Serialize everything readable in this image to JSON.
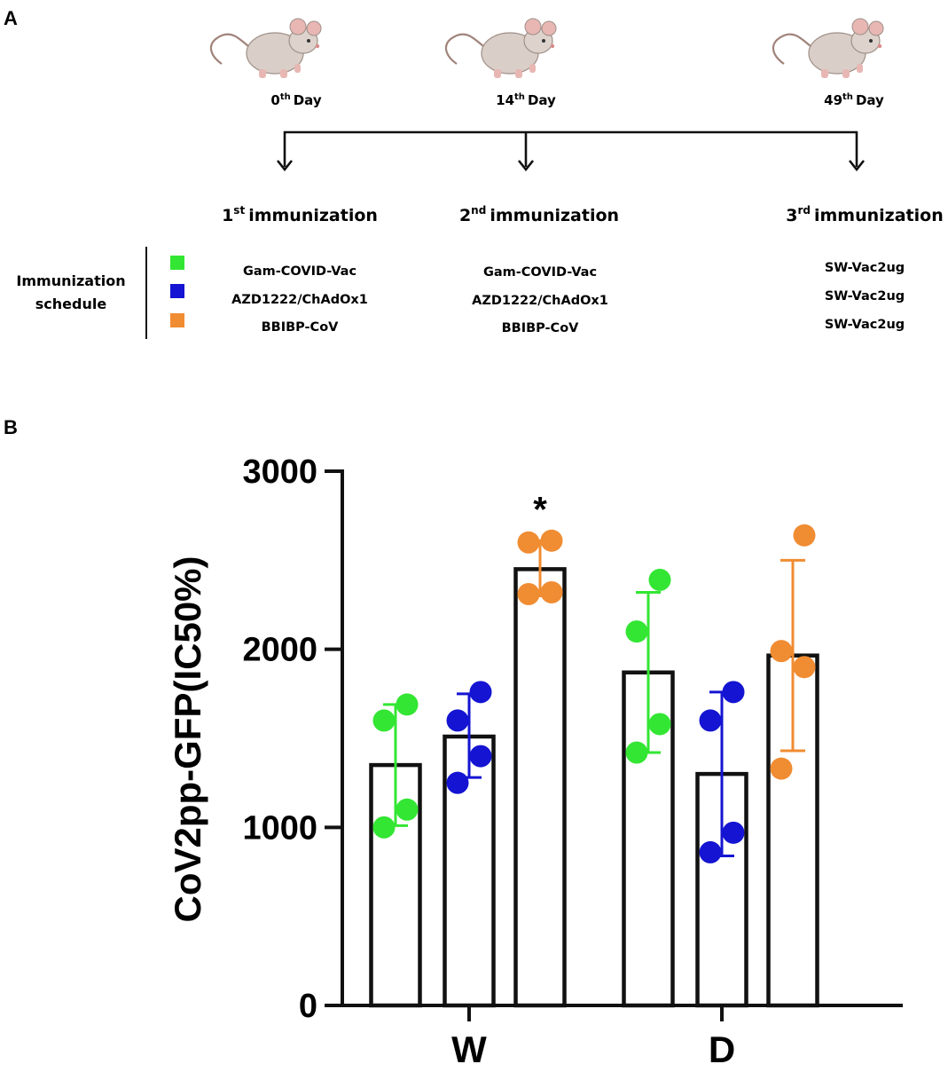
{
  "panels": {
    "a": "A",
    "b": "B"
  },
  "timeline": {
    "days": [
      {
        "num": "0",
        "sup": "th",
        "word": "Day"
      },
      {
        "num": "14",
        "sup": "th",
        "word": "Day"
      },
      {
        "num": "49",
        "sup": "th",
        "word": "Day"
      }
    ],
    "immunizations": [
      {
        "num": "1",
        "sup": "st",
        "word": "immunization",
        "vaccines": [
          "Gam-COVID-Vac",
          "AZD1222/ChAdOx1",
          "BBIBP-CoV"
        ]
      },
      {
        "num": "2",
        "sup": "nd",
        "word": "immunization",
        "vaccines": [
          "Gam-COVID-Vac",
          "AZD1222/ChAdOx1",
          "BBIBP-CoV"
        ]
      },
      {
        "num": "3",
        "sup": "rd",
        "word": "immunization",
        "vaccines": [
          "SW-Vac2ug",
          "SW-Vac2ug",
          "SW-Vac2ug"
        ]
      }
    ],
    "schedule_label": [
      "Immunization",
      "schedule"
    ],
    "legend_colors": [
      "#33e633",
      "#1414d2",
      "#f08c32"
    ]
  },
  "colors": {
    "green": "#33e633",
    "blue": "#1414d2",
    "orange": "#f08c32",
    "mouse": "#d9cfc8",
    "mouse_ear": "#e8b7b3"
  },
  "chart_data": {
    "type": "bar",
    "ylabel": "CoV2pp-GFP(IC50%)",
    "ylim": [
      0,
      3000
    ],
    "yticks": [
      0,
      1000,
      2000,
      3000
    ],
    "ytick_labels": [
      "0",
      "1000",
      "2000",
      "3000"
    ],
    "categories": [
      "W",
      "D"
    ],
    "series": [
      {
        "name": "Gam-COVID-Vac",
        "color": "#33e633",
        "values": [
          1350,
          1870
        ],
        "sd_low": [
          1010,
          1420
        ],
        "sd_high": [
          1690,
          2320
        ],
        "points": [
          [
            1000,
            1100,
            1600,
            1690
          ],
          [
            1420,
            1580,
            2100,
            2390
          ]
        ]
      },
      {
        "name": "AZD1222/ChAdOx1",
        "color": "#1414d2",
        "values": [
          1510,
          1300
        ],
        "sd_low": [
          1280,
          840
        ],
        "sd_high": [
          1750,
          1760
        ],
        "points": [
          [
            1250,
            1400,
            1600,
            1760
          ],
          [
            860,
            970,
            1600,
            1760
          ]
        ]
      },
      {
        "name": "BBIBP-CoV",
        "color": "#f08c32",
        "values": [
          2450,
          1965
        ],
        "sd_low": [
          2300,
          1430
        ],
        "sd_high": [
          2610,
          2500
        ],
        "points": [
          [
            2310,
            2320,
            2600,
            2610
          ],
          [
            1330,
            1900,
            1990,
            2640
          ]
        ]
      }
    ],
    "annotations": [
      {
        "category": "W",
        "series": "BBIBP-CoV",
        "text": "*"
      }
    ]
  }
}
